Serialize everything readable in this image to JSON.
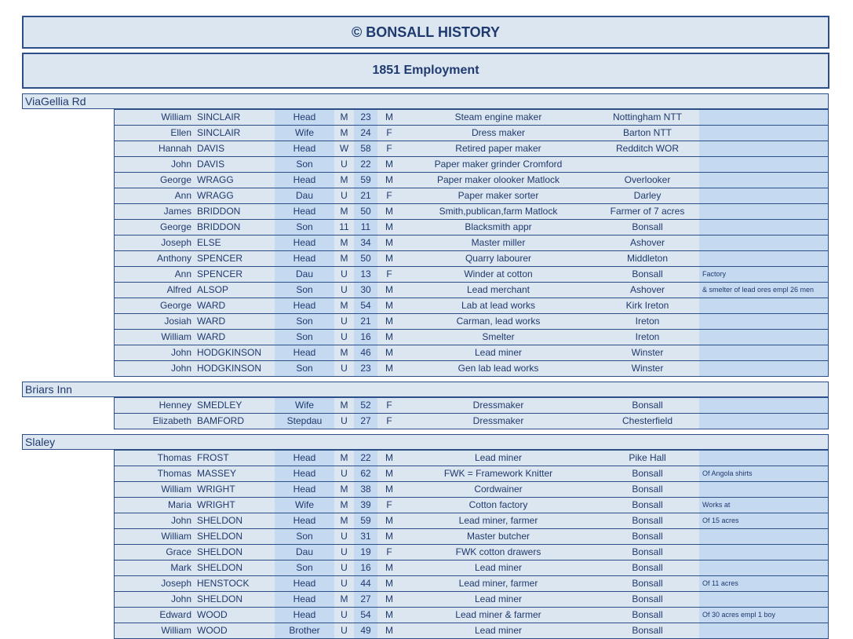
{
  "header": {
    "title": "© BONSALL HISTORY",
    "subtitle": "1851 Employment"
  },
  "sections": [
    {
      "name": "ViaGellia Rd",
      "rows": [
        {
          "first": "William",
          "surname": "SINCLAIR",
          "relation": "Head",
          "status": "M",
          "age": 23,
          "sex": "M",
          "occupation": "Steam engine maker",
          "birthplace": "Nottingham NTT"
        },
        {
          "first": "Ellen",
          "surname": "SINCLAIR",
          "relation": "Wife",
          "status": "M",
          "age": 24,
          "sex": "F",
          "occupation": "Dress maker",
          "birthplace": "Barton NTT"
        },
        {
          "first": "Hannah",
          "surname": "DAVIS",
          "relation": "Head",
          "status": "W",
          "age": 58,
          "sex": "F",
          "occupation": "Retired paper maker",
          "birthplace": "Redditch WOR"
        },
        {
          "first": "John",
          "surname": "DAVIS",
          "relation": "Son",
          "status": "U",
          "age": 22,
          "sex": "M",
          "occupation": "Paper maker grinder Cromford"
        },
        {
          "first": "George",
          "surname": "WRAGG",
          "relation": "Head",
          "status": "M",
          "age": 59,
          "sex": "M",
          "occupation": "Paper maker olooker Matlock",
          "birthplace": "Overlooker"
        },
        {
          "first": "Ann",
          "surname": "WRAGG",
          "relation": "Dau",
          "status": "U",
          "age": 21,
          "sex": "F",
          "occupation": "Paper maker sorter",
          "birthplace": "Darley"
        },
        {
          "first": "James",
          "surname": "BRIDDON",
          "relation": "Head",
          "status": "M",
          "age": 50,
          "sex": "M",
          "occupation": "Smith,publican,farm Matlock",
          "birthplace": "Farmer of 7 acres"
        },
        {
          "first": "George",
          "surname": "BRIDDON",
          "relation": "Son",
          "status": "11",
          "age": 11,
          "sex": "M",
          "occupation": "Blacksmith appr",
          "birthplace": "Bonsall"
        },
        {
          "first": "Joseph",
          "surname": "ELSE",
          "relation": "Head",
          "status": "M",
          "age": 34,
          "sex": "M",
          "occupation": "Master miller",
          "birthplace": "Ashover"
        },
        {
          "first": "Anthony",
          "surname": "SPENCER",
          "relation": "Head",
          "status": "M",
          "age": 50,
          "sex": "M",
          "occupation": "Quarry labourer",
          "birthplace": "Middleton"
        },
        {
          "first": "Ann",
          "surname": "SPENCER",
          "relation": "Dau",
          "status": "U",
          "age": 13,
          "sex": "F",
          "occupation": "Winder at cotton",
          "birthplace": "Bonsall",
          "note": "Factory"
        },
        {
          "first": "Alfred",
          "surname": "ALSOP",
          "relation": "Son",
          "status": "U",
          "age": 30,
          "sex": "M",
          "occupation": "Lead merchant",
          "birthplace": "Ashover",
          "note": "& smelter of lead ores empl 26 men"
        },
        {
          "first": "George",
          "surname": "WARD",
          "relation": "Head",
          "status": "M",
          "age": 54,
          "sex": "M",
          "occupation": "Lab at lead works",
          "birthplace": "Kirk Ireton"
        },
        {
          "first": "Josiah",
          "surname": "WARD",
          "relation": "Son",
          "status": "U",
          "age": 21,
          "sex": "M",
          "occupation": "Carman, lead works",
          "birthplace": "Ireton"
        },
        {
          "first": "William",
          "surname": "WARD",
          "relation": "Son",
          "status": "U",
          "age": 16,
          "sex": "M",
          "occupation": "Smelter",
          "birthplace": "Ireton"
        },
        {
          "first": "John",
          "surname": "HODGKINSON",
          "relation": "Head",
          "status": "M",
          "age": 46,
          "sex": "M",
          "occupation": "Lead miner",
          "birthplace": "Winster"
        },
        {
          "first": "John",
          "surname": "HODGKINSON",
          "relation": "Son",
          "status": "U",
          "age": 23,
          "sex": "M",
          "occupation": "Gen lab lead works",
          "birthplace": "Winster"
        }
      ]
    },
    {
      "name": "Briars Inn",
      "rows": [
        {
          "first": "Henney",
          "surname": "SMEDLEY",
          "relation": "Wife",
          "status": "M",
          "age": 52,
          "sex": "F",
          "occupation": "Dressmaker",
          "birthplace": "Bonsall"
        },
        {
          "first": "Elizabeth",
          "surname": "BAMFORD",
          "relation": "Stepdau",
          "status": "U",
          "age": 27,
          "sex": "F",
          "occupation": "Dressmaker",
          "birthplace": "Chesterfield"
        }
      ]
    },
    {
      "name": "Slaley",
      "rows": [
        {
          "first": "Thomas",
          "surname": "FROST",
          "relation": "Head",
          "status": "M",
          "age": 22,
          "sex": "M",
          "occupation": "Lead miner",
          "birthplace": "Pike Hall"
        },
        {
          "first": "Thomas",
          "surname": "MASSEY",
          "relation": "Head",
          "status": "U",
          "age": 62,
          "sex": "M",
          "occupation": "FWK = Framework Knitter",
          "birthplace": "Bonsall",
          "note": "Of Angola shirts"
        },
        {
          "first": "William",
          "surname": "WRIGHT",
          "relation": "Head",
          "status": "M",
          "age": 38,
          "sex": "M",
          "occupation": "Cordwainer",
          "birthplace": "Bonsall"
        },
        {
          "first": "Maria",
          "surname": "WRIGHT",
          "relation": "Wife",
          "status": "M",
          "age": 39,
          "sex": "F",
          "occupation": "Cotton factory",
          "birthplace": "Bonsall",
          "note": "Works at"
        },
        {
          "first": "John",
          "surname": "SHELDON",
          "relation": "Head",
          "status": "M",
          "age": 59,
          "sex": "M",
          "occupation": "Lead miner, farmer",
          "birthplace": "Bonsall",
          "note": "Of 15 acres"
        },
        {
          "first": "William",
          "surname": "SHELDON",
          "relation": "Son",
          "status": "U",
          "age": 31,
          "sex": "M",
          "occupation": "Master butcher",
          "birthplace": "Bonsall"
        },
        {
          "first": "Grace",
          "surname": "SHELDON",
          "relation": "Dau",
          "status": "U",
          "age": 19,
          "sex": "F",
          "occupation": "FWK cotton drawers",
          "birthplace": "Bonsall"
        },
        {
          "first": "Mark",
          "surname": "SHELDON",
          "relation": "Son",
          "status": "U",
          "age": 16,
          "sex": "M",
          "occupation": "Lead miner",
          "birthplace": "Bonsall"
        },
        {
          "first": "Joseph",
          "surname": "HENSTOCK",
          "relation": "Head",
          "status": "U",
          "age": 44,
          "sex": "M",
          "occupation": "Lead miner, farmer",
          "birthplace": "Bonsall",
          "note": "Of 11 acres"
        },
        {
          "first": "John",
          "surname": "SHELDON",
          "relation": "Head",
          "status": "M",
          "age": 27,
          "sex": "M",
          "occupation": "Lead miner",
          "birthplace": "Bonsall"
        },
        {
          "first": "Edward",
          "surname": "WOOD",
          "relation": "Head",
          "status": "U",
          "age": 54,
          "sex": "M",
          "occupation": "Lead miner & farmer",
          "birthplace": "Bonsall",
          "note": "Of 30 acres empl 1 boy"
        },
        {
          "first": "William",
          "surname": "WOOD",
          "relation": "Brother",
          "status": "U",
          "age": 49,
          "sex": "M",
          "occupation": "Lead miner",
          "birthplace": "Bonsall"
        }
      ]
    }
  ]
}
